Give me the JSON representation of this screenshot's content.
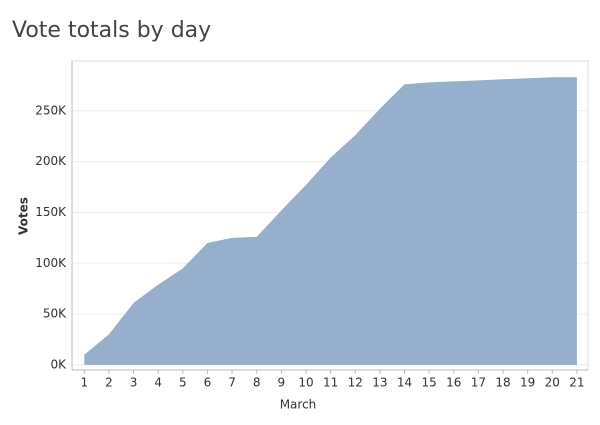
{
  "chart_data": {
    "type": "area",
    "title": "Vote totals by day",
    "x_label": "March",
    "y_label": "Votes",
    "x": [
      1,
      2,
      3,
      4,
      5,
      6,
      7,
      8,
      9,
      10,
      11,
      12,
      13,
      14,
      15,
      16,
      17,
      18,
      19,
      20,
      21
    ],
    "xlim": [
      0.5,
      21.45
    ],
    "xticks": [
      1,
      2,
      3,
      4,
      5,
      6,
      7,
      8,
      9,
      10,
      11,
      12,
      13,
      14,
      15,
      16,
      17,
      18,
      19,
      20,
      21
    ],
    "series": [
      {
        "name": "Votes",
        "color": "#8fabc9",
        "values": [
          10000,
          30000,
          61000,
          79000,
          95000,
          120000,
          125000,
          126000,
          152000,
          177000,
          204000,
          226000,
          252000,
          276000,
          278000,
          279000,
          280000,
          281000,
          282000,
          283000,
          283000
        ]
      }
    ],
    "ylim": [
      -5000,
      299000
    ],
    "yticks": [
      {
        "value": 0,
        "label": "0K"
      },
      {
        "value": 50000,
        "label": "50K"
      },
      {
        "value": 100000,
        "label": "100K"
      },
      {
        "value": 150000,
        "label": "150K"
      },
      {
        "value": 200000,
        "label": "200K"
      },
      {
        "value": 250000,
        "label": "250K"
      }
    ],
    "grid": true
  }
}
